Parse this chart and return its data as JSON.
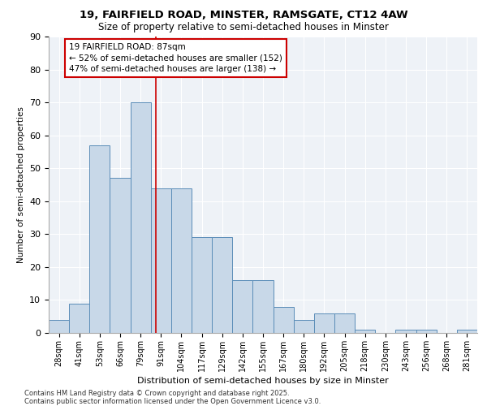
{
  "title_line1": "19, FAIRFIELD ROAD, MINSTER, RAMSGATE, CT12 4AW",
  "title_line2": "Size of property relative to semi-detached houses in Minster",
  "xlabel": "Distribution of semi-detached houses by size in Minster",
  "ylabel": "Number of semi-detached properties",
  "bar_color": "#c8d8e8",
  "bar_edge_color": "#5b8db8",
  "categories": [
    "28sqm",
    "41sqm",
    "53sqm",
    "66sqm",
    "79sqm",
    "91sqm",
    "104sqm",
    "117sqm",
    "129sqm",
    "142sqm",
    "155sqm",
    "167sqm",
    "180sqm",
    "192sqm",
    "205sqm",
    "218sqm",
    "230sqm",
    "243sqm",
    "256sqm",
    "268sqm",
    "281sqm"
  ],
  "values": [
    4,
    9,
    57,
    47,
    70,
    44,
    44,
    29,
    29,
    16,
    16,
    8,
    4,
    6,
    6,
    1,
    0,
    1,
    1,
    0,
    1
  ],
  "property_label": "19 FAIRFIELD ROAD: 87sqm",
  "pct_smaller": 52,
  "n_smaller": 152,
  "pct_larger": 47,
  "n_larger": 138,
  "vline_x": 4.75,
  "ylim": [
    0,
    90
  ],
  "yticks": [
    0,
    10,
    20,
    30,
    40,
    50,
    60,
    70,
    80,
    90
  ],
  "footnote1": "Contains HM Land Registry data © Crown copyright and database right 2025.",
  "footnote2": "Contains public sector information licensed under the Open Government Licence v3.0.",
  "annotation_box_color": "#cc0000",
  "vline_color": "#cc0000",
  "background_color": "#eef2f7",
  "grid_color": "#ffffff",
  "title_fontsize": 9.5,
  "subtitle_fontsize": 8.5,
  "annotation_fontsize": 7.5,
  "tick_fontsize": 7,
  "ylabel_fontsize": 7.5,
  "xlabel_fontsize": 8
}
